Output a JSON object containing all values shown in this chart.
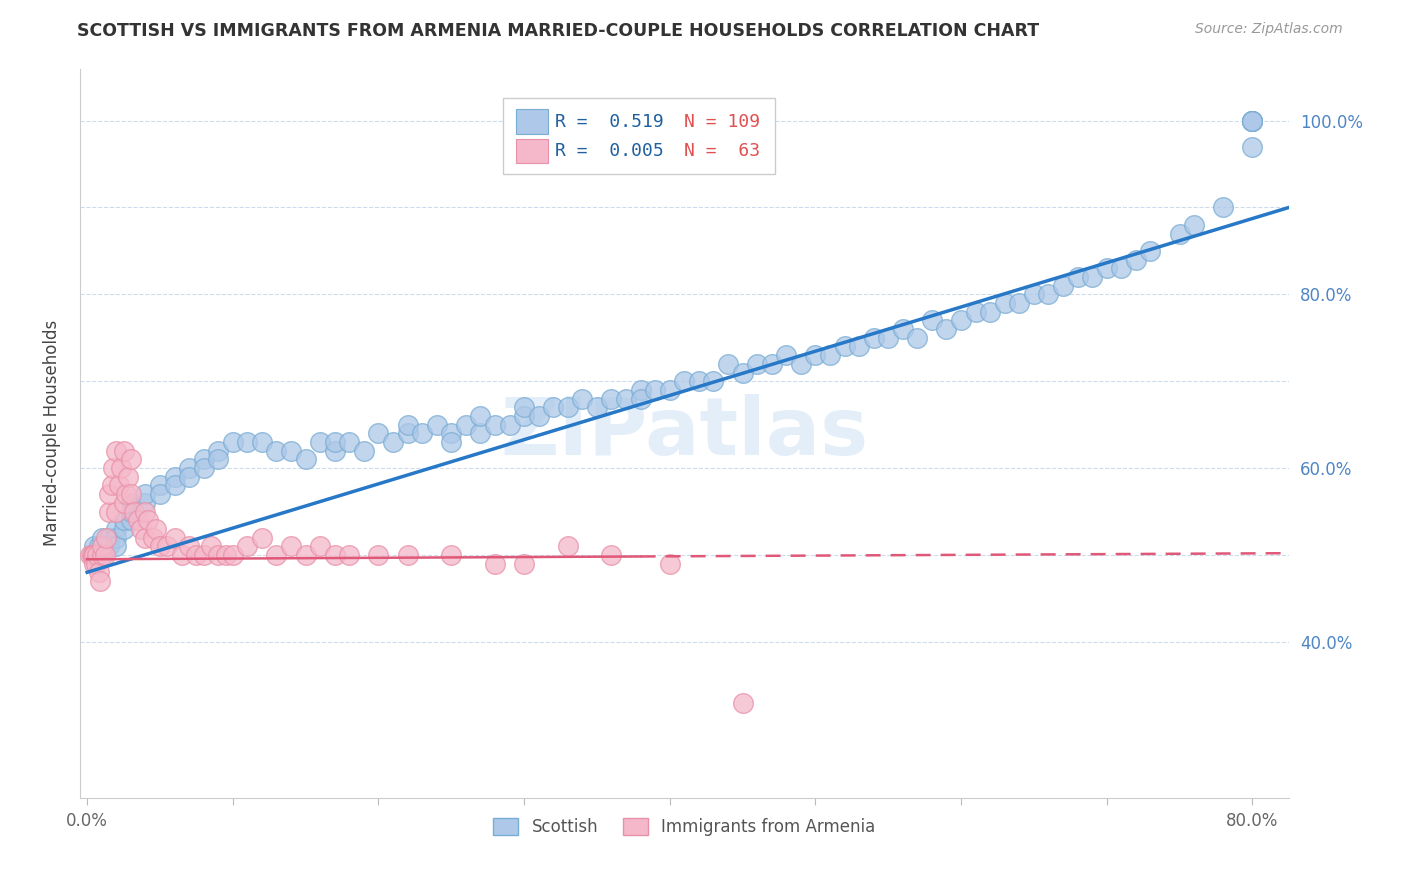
{
  "title": "SCOTTISH VS IMMIGRANTS FROM ARMENIA MARRIED-COUPLE HOUSEHOLDS CORRELATION CHART",
  "source": "Source: ZipAtlas.com",
  "ylabel_label": "Married-couple Households",
  "xlim": [
    -0.005,
    0.825
  ],
  "ylim": [
    0.22,
    1.06
  ],
  "x_tick_positions": [
    0.0,
    0.1,
    0.2,
    0.3,
    0.4,
    0.5,
    0.6,
    0.7,
    0.8
  ],
  "x_tick_labels": [
    "0.0%",
    "",
    "",
    "",
    "",
    "",
    "",
    "",
    "80.0%"
  ],
  "y_tick_positions": [
    0.4,
    0.5,
    0.6,
    0.7,
    0.8,
    0.9,
    1.0
  ],
  "y_tick_labels": [
    "40.0%",
    "",
    "60.0%",
    "",
    "80.0%",
    "",
    "100.0%"
  ],
  "blue_color": "#adc8e8",
  "blue_edge_color": "#7aadd4",
  "pink_color": "#f4b8ca",
  "pink_edge_color": "#e890a8",
  "blue_line_color": "#2878c8",
  "pink_line_color": "#e05878",
  "watermark": "ZIPatlas",
  "legend_R_blue": "0.519",
  "legend_N_blue": "109",
  "legend_R_pink": "0.005",
  "legend_N_pink": "63",
  "blue_line_x0": 0.0,
  "blue_line_x1": 0.825,
  "blue_line_y0": 0.48,
  "blue_line_y1": 0.9,
  "pink_line_x0": 0.0,
  "pink_line_x1": 0.825,
  "pink_line_y0": 0.495,
  "pink_line_y1": 0.502,
  "blue_scatter_x": [
    0.005,
    0.005,
    0.005,
    0.008,
    0.01,
    0.01,
    0.01,
    0.01,
    0.015,
    0.015,
    0.02,
    0.02,
    0.02,
    0.025,
    0.025,
    0.03,
    0.03,
    0.03,
    0.04,
    0.04,
    0.05,
    0.05,
    0.06,
    0.06,
    0.07,
    0.07,
    0.08,
    0.08,
    0.09,
    0.09,
    0.1,
    0.11,
    0.12,
    0.13,
    0.14,
    0.15,
    0.16,
    0.17,
    0.17,
    0.18,
    0.19,
    0.2,
    0.21,
    0.22,
    0.22,
    0.23,
    0.24,
    0.25,
    0.25,
    0.26,
    0.27,
    0.27,
    0.28,
    0.29,
    0.3,
    0.3,
    0.31,
    0.32,
    0.33,
    0.34,
    0.35,
    0.36,
    0.37,
    0.38,
    0.38,
    0.39,
    0.4,
    0.41,
    0.42,
    0.43,
    0.44,
    0.45,
    0.46,
    0.47,
    0.48,
    0.49,
    0.5,
    0.51,
    0.52,
    0.53,
    0.54,
    0.55,
    0.56,
    0.57,
    0.58,
    0.59,
    0.6,
    0.61,
    0.62,
    0.63,
    0.64,
    0.65,
    0.66,
    0.67,
    0.68,
    0.69,
    0.7,
    0.71,
    0.72,
    0.73,
    0.75,
    0.76,
    0.78,
    0.8,
    0.8,
    0.8,
    0.8,
    0.8,
    0.8
  ],
  "blue_scatter_y": [
    0.5,
    0.51,
    0.5,
    0.51,
    0.51,
    0.5,
    0.52,
    0.5,
    0.52,
    0.51,
    0.53,
    0.52,
    0.51,
    0.53,
    0.54,
    0.54,
    0.55,
    0.56,
    0.56,
    0.57,
    0.58,
    0.57,
    0.59,
    0.58,
    0.6,
    0.59,
    0.61,
    0.6,
    0.62,
    0.61,
    0.63,
    0.63,
    0.63,
    0.62,
    0.62,
    0.61,
    0.63,
    0.62,
    0.63,
    0.63,
    0.62,
    0.64,
    0.63,
    0.64,
    0.65,
    0.64,
    0.65,
    0.64,
    0.63,
    0.65,
    0.64,
    0.66,
    0.65,
    0.65,
    0.66,
    0.67,
    0.66,
    0.67,
    0.67,
    0.68,
    0.67,
    0.68,
    0.68,
    0.69,
    0.68,
    0.69,
    0.69,
    0.7,
    0.7,
    0.7,
    0.72,
    0.71,
    0.72,
    0.72,
    0.73,
    0.72,
    0.73,
    0.73,
    0.74,
    0.74,
    0.75,
    0.75,
    0.76,
    0.75,
    0.77,
    0.76,
    0.77,
    0.78,
    0.78,
    0.79,
    0.79,
    0.8,
    0.8,
    0.81,
    0.82,
    0.82,
    0.83,
    0.83,
    0.84,
    0.85,
    0.87,
    0.88,
    0.9,
    1.0,
    1.0,
    1.0,
    1.0,
    1.0,
    0.97
  ],
  "pink_scatter_x": [
    0.002,
    0.003,
    0.004,
    0.005,
    0.005,
    0.006,
    0.007,
    0.008,
    0.009,
    0.01,
    0.01,
    0.012,
    0.013,
    0.015,
    0.015,
    0.017,
    0.018,
    0.02,
    0.02,
    0.022,
    0.023,
    0.025,
    0.025,
    0.027,
    0.028,
    0.03,
    0.03,
    0.032,
    0.035,
    0.037,
    0.04,
    0.04,
    0.042,
    0.045,
    0.047,
    0.05,
    0.055,
    0.06,
    0.065,
    0.07,
    0.075,
    0.08,
    0.085,
    0.09,
    0.095,
    0.1,
    0.11,
    0.12,
    0.13,
    0.14,
    0.15,
    0.16,
    0.17,
    0.18,
    0.2,
    0.22,
    0.25,
    0.28,
    0.3,
    0.33,
    0.36,
    0.4,
    0.45
  ],
  "pink_scatter_y": [
    0.5,
    0.5,
    0.5,
    0.5,
    0.49,
    0.49,
    0.5,
    0.48,
    0.47,
    0.5,
    0.51,
    0.5,
    0.52,
    0.55,
    0.57,
    0.58,
    0.6,
    0.62,
    0.55,
    0.58,
    0.6,
    0.62,
    0.56,
    0.57,
    0.59,
    0.61,
    0.57,
    0.55,
    0.54,
    0.53,
    0.52,
    0.55,
    0.54,
    0.52,
    0.53,
    0.51,
    0.51,
    0.52,
    0.5,
    0.51,
    0.5,
    0.5,
    0.51,
    0.5,
    0.5,
    0.5,
    0.51,
    0.52,
    0.5,
    0.51,
    0.5,
    0.51,
    0.5,
    0.5,
    0.5,
    0.5,
    0.5,
    0.49,
    0.49,
    0.51,
    0.5,
    0.49,
    0.33
  ]
}
